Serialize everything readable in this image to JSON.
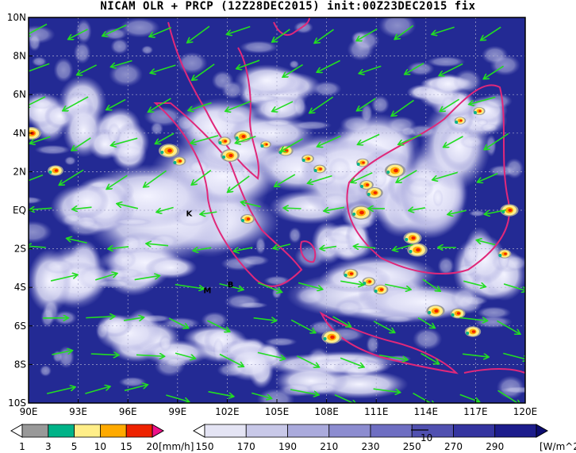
{
  "title": "NICAM OLR + PRCP (12Z28DEC2015) init:00Z23DEC2015 fix",
  "map": {
    "lat_labels": [
      "10N",
      "8N",
      "6N",
      "4N",
      "2N",
      "EQ",
      "2S",
      "4S",
      "6S",
      "8S",
      "10S"
    ],
    "lon_labels": [
      "90E",
      "93E",
      "96E",
      "99E",
      "102E",
      "105E",
      "108E",
      "111E",
      "114E",
      "117E",
      "120E"
    ],
    "station_labels": [
      {
        "text": "K",
        "lon": 99.7,
        "lat": -0.3
      },
      {
        "text": "M",
        "lon": 100.8,
        "lat": -4.3
      },
      {
        "text": "B",
        "lon": 102.2,
        "lat": -4.0
      }
    ],
    "colors": {
      "ocean_deep": "#1a1f8c",
      "cloud": "#f4f4ff",
      "coast": "#e0287a",
      "wind": "#22dd22",
      "grid": "#aaaacc"
    }
  },
  "prcp_scale": {
    "levels": [
      "1",
      "3",
      "5",
      "10",
      "15",
      "20"
    ],
    "unit": "[mm/h]",
    "colors": [
      "#ffffff",
      "#999999",
      "#00b388",
      "#ffee88",
      "#ffaa00",
      "#ee2200",
      "#ee1188"
    ]
  },
  "olr_scale": {
    "levels": [
      "150",
      "170",
      "190",
      "210",
      "230",
      "250",
      "270",
      "290"
    ],
    "unit": "[W/m^2]",
    "ref_vector_label": "10",
    "colors": [
      "#ffffff",
      "#e4e4f4",
      "#c8c8e8",
      "#aaaadc",
      "#8c8cd0",
      "#6e6ec2",
      "#5050b0",
      "#3434a0",
      "#1c1c8c",
      "#0c0c70"
    ]
  }
}
